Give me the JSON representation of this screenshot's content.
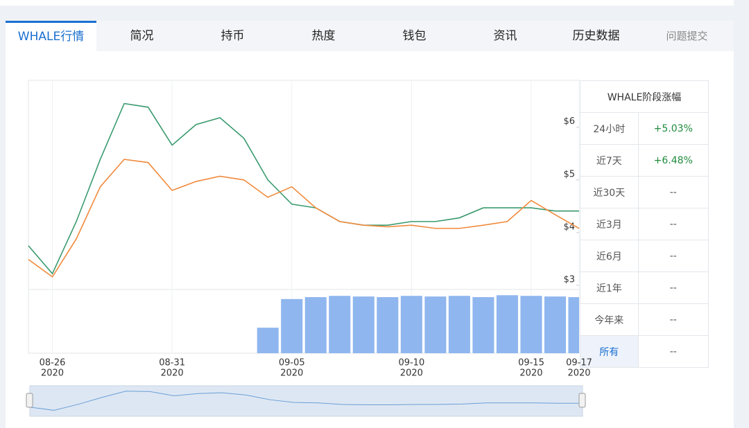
{
  "tabs": [
    "WHALE行情",
    "简况",
    "持币",
    "热度",
    "钱包",
    "资讯",
    "历史数据",
    "问题提交"
  ],
  "chart_data": {
    "type": "line",
    "x": [
      "2020-08-25",
      "2020-08-26",
      "2020-08-27",
      "2020-08-28",
      "2020-08-29",
      "2020-08-30",
      "2020-08-31",
      "2020-09-01",
      "2020-09-02",
      "2020-09-03",
      "2020-09-04",
      "2020-09-05",
      "2020-09-06",
      "2020-09-07",
      "2020-09-08",
      "2020-09-09",
      "2020-09-10",
      "2020-09-11",
      "2020-09-12",
      "2020-09-13",
      "2020-09-14",
      "2020-09-15",
      "2020-09-16",
      "2020-09-17"
    ],
    "series": [
      {
        "color": "#3a9a6e",
        "values": [
          3.75,
          3.22,
          4.21,
          5.39,
          6.45,
          6.38,
          5.66,
          6.05,
          6.18,
          5.79,
          5.0,
          4.54,
          4.47,
          4.21,
          4.14,
          4.14,
          4.21,
          4.21,
          4.28,
          4.47,
          4.47,
          4.47,
          4.41,
          4.41
        ]
      },
      {
        "color": "#f08a3c",
        "values": [
          3.49,
          3.16,
          3.88,
          4.87,
          5.39,
          5.33,
          4.8,
          4.97,
          5.07,
          5.0,
          4.67,
          4.87,
          4.47,
          4.21,
          4.14,
          4.11,
          4.14,
          4.08,
          4.08,
          4.14,
          4.21,
          4.61,
          4.34,
          4.08
        ]
      }
    ],
    "volume": {
      "color": "#8fb6ee",
      "values": [
        0,
        0,
        0,
        0,
        0,
        0,
        0,
        0,
        0,
        0,
        40,
        85,
        88,
        90,
        89,
        88,
        90,
        89,
        90,
        88,
        91,
        90,
        89,
        88
      ],
      "ylim": [
        0,
        100
      ]
    },
    "xlim": [
      "2020-08-25",
      "2020-09-17"
    ],
    "xticks": [
      {
        "value": "2020-08-26",
        "label": [
          "08-26",
          "2020"
        ]
      },
      {
        "value": "2020-08-31",
        "label": [
          "08-31",
          "2020"
        ]
      },
      {
        "value": "2020-09-05",
        "label": [
          "09-05",
          "2020"
        ]
      },
      {
        "value": "2020-09-10",
        "label": [
          "09-10",
          "2020"
        ]
      },
      {
        "value": "2020-09-15",
        "label": [
          "09-15",
          "2020"
        ]
      },
      {
        "value": "2020-09-17",
        "label": [
          "09-17",
          "2020"
        ]
      }
    ],
    "ylim": [
      2.92,
      6.89
    ],
    "yticks": [
      {
        "value": 3,
        "label": "$3"
      },
      {
        "value": 4,
        "label": "$4"
      },
      {
        "value": 5,
        "label": "$5"
      },
      {
        "value": 6,
        "label": "$6"
      }
    ],
    "grid": true
  },
  "table": {
    "header": "WHALE阶段涨幅",
    "rows": [
      [
        "24小时",
        "+5.03%"
      ],
      [
        "近7天",
        "+6.48%"
      ],
      [
        "近30天",
        "--"
      ],
      [
        "近3月",
        "--"
      ],
      [
        "近6月",
        "--"
      ],
      [
        "近1年",
        "--"
      ],
      [
        "今年来",
        "--"
      ],
      [
        "所有",
        "--"
      ]
    ]
  }
}
